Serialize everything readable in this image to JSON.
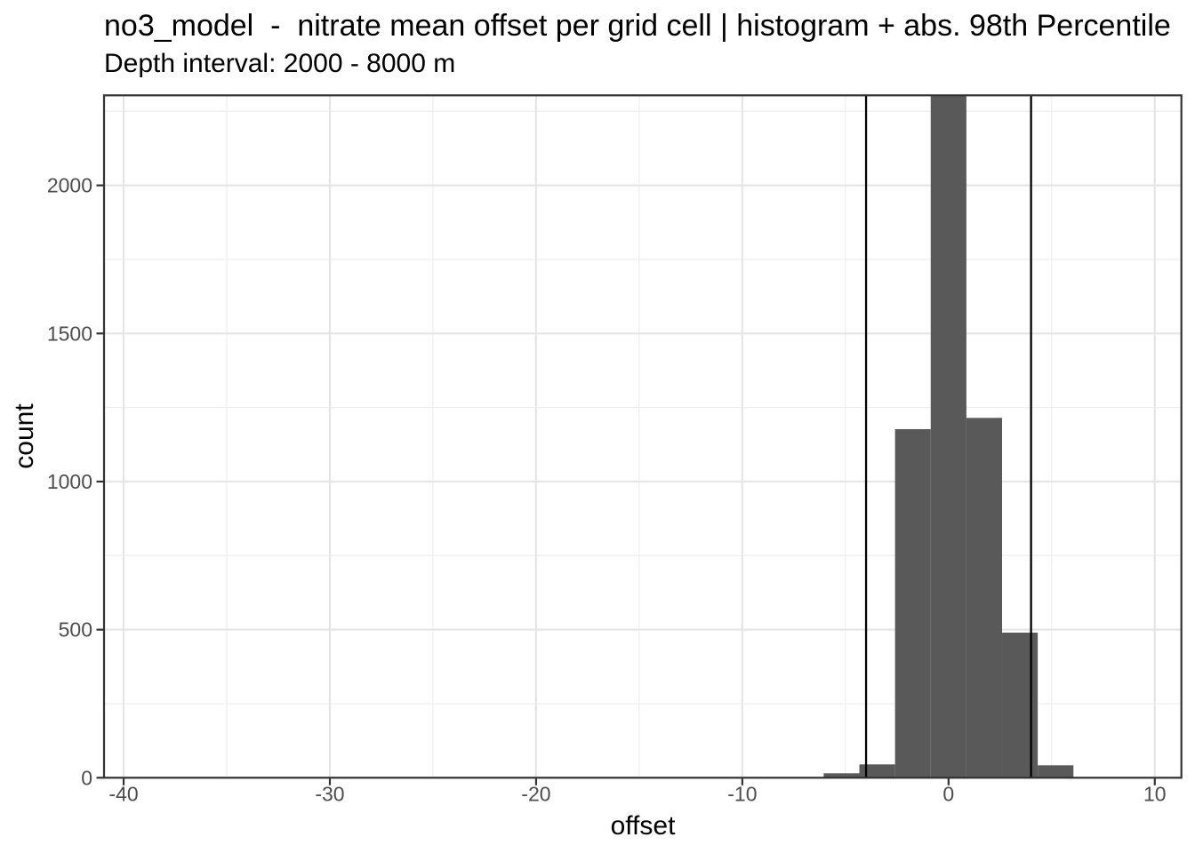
{
  "chart_data": {
    "type": "bar",
    "variant": "histogram",
    "title": "no3_model  -  nitrate mean offset per grid cell | histogram + abs. 98th Percentile",
    "subtitle": "Depth interval: 2000 - 8000 m",
    "xlabel": "offset",
    "ylabel": "count",
    "xlim": [
      -40.95,
      11.29
    ],
    "ylim": [
      0,
      2304
    ],
    "x_ticks": [
      {
        "value": -40,
        "label": "-40"
      },
      {
        "value": -30,
        "label": "-30"
      },
      {
        "value": -20,
        "label": "-20"
      },
      {
        "value": -10,
        "label": "-10"
      },
      {
        "value": 0,
        "label": "0"
      },
      {
        "value": 10,
        "label": "10"
      }
    ],
    "y_ticks": [
      {
        "value": 0,
        "label": "0"
      },
      {
        "value": 500,
        "label": "500"
      },
      {
        "value": 1000,
        "label": "1000"
      },
      {
        "value": 1500,
        "label": "1500"
      },
      {
        "value": 2000,
        "label": "2000"
      }
    ],
    "x_minor_ticks": [
      -35,
      -25,
      -15,
      -5,
      5
    ],
    "y_minor_ticks": [
      250,
      750,
      1250,
      1750,
      2250
    ],
    "binwidth": 1.73,
    "bins": [
      {
        "center": -5.19,
        "count": 15
      },
      {
        "center": -3.46,
        "count": 45
      },
      {
        "center": -1.73,
        "count": 1177
      },
      {
        "center": 0,
        "count": 2310,
        "clipped_at_top": true
      },
      {
        "center": 1.73,
        "count": 1215
      },
      {
        "center": 3.46,
        "count": 490
      },
      {
        "center": 5.19,
        "count": 42
      }
    ],
    "vlines": [
      -4.0,
      4.0
    ],
    "grid": true,
    "legend": "none",
    "colors": {
      "bar_fill": "#595959",
      "vline": "#000000",
      "panel_border": "#333333",
      "tick_mark": "#333333",
      "grid_major": "#e5e5e5",
      "grid_minor": "#efefef",
      "tick_label": "#4d4d4d",
      "text": "#000000",
      "background": "#ffffff"
    }
  }
}
